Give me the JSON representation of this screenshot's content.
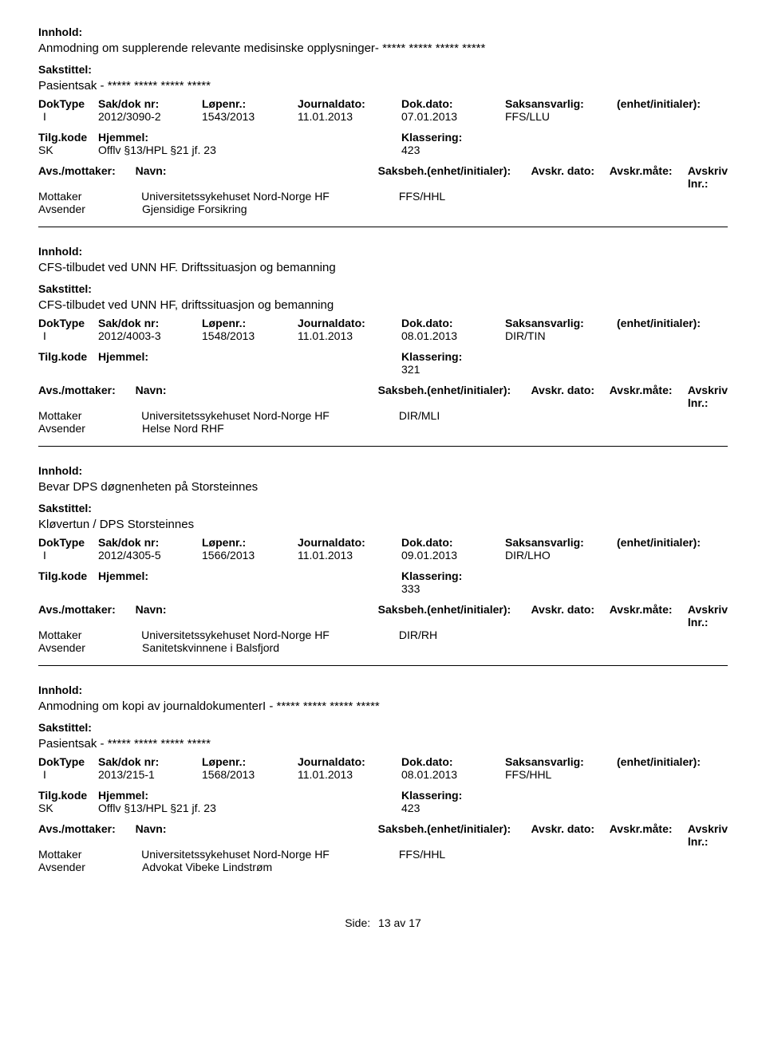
{
  "labels": {
    "innhold": "Innhold:",
    "sakstittel": "Sakstittel:",
    "doktype": "DokType",
    "sakdoknr": "Sak/dok nr:",
    "lopenr": "Løpenr.:",
    "journaldato": "Journaldato:",
    "dokdato": "Dok.dato:",
    "saksansvarlig": "Saksansvarlig:",
    "enhet": "(enhet/initialer):",
    "tilgkode": "Tilg.kode",
    "hjemmel": "Hjemmel:",
    "klassering": "Klassering:",
    "avsmottaker": "Avs./mottaker:",
    "navn": "Navn:",
    "saksbeh": "Saksbeh.(enhet/initialer):",
    "avskrdato": "Avskr. dato:",
    "avskrmate": "Avskr.måte:",
    "avskrivlnr": "Avskriv lnr.:",
    "mottaker": "Mottaker",
    "avsender": "Avsender",
    "side": "Side:",
    "av": "av"
  },
  "entries": [
    {
      "innhold": "Anmodning om supplerende relevante medisinske opplysninger- ***** ***** ***** *****",
      "sakstittel": "Pasientsak - ***** ***** ***** *****",
      "doktype": "I",
      "sakdoknr": "2012/3090-2",
      "lopenr": "1543/2013",
      "journaldato": "11.01.2013",
      "dokdato": "07.01.2013",
      "saksansvarlig": "FFS/LLU",
      "tilgkode": "SK",
      "hjemmel": "Offlv §13/HPL §21 jf. 23",
      "klassering": "423",
      "mottaker_navn": "Universitetssykehuset Nord-Norge HF",
      "saksbeh": "FFS/HHL",
      "avsender_navn": "Gjensidige Forsikring",
      "show_am_headers_row": false
    },
    {
      "innhold": "CFS-tilbudet ved UNN HF. Driftssituasjon og bemanning",
      "sakstittel": "CFS-tilbudet ved UNN HF, driftssituasjon og bemanning",
      "doktype": "I",
      "sakdoknr": "2012/4003-3",
      "lopenr": "1548/2013",
      "journaldato": "11.01.2013",
      "dokdato": "08.01.2013",
      "saksansvarlig": "DIR/TIN",
      "tilgkode": "",
      "hjemmel": "",
      "klassering": "321",
      "mottaker_navn": "Universitetssykehuset Nord-Norge HF",
      "saksbeh": "DIR/MLI",
      "avsender_navn": "Helse Nord RHF",
      "show_am_headers_row": false
    },
    {
      "innhold": "Bevar DPS døgnenheten på Storsteinnes",
      "sakstittel": "Kløvertun / DPS Storsteinnes",
      "doktype": "I",
      "sakdoknr": "2012/4305-5",
      "lopenr": "1566/2013",
      "journaldato": "11.01.2013",
      "dokdato": "09.01.2013",
      "saksansvarlig": "DIR/LHO",
      "tilgkode": "",
      "hjemmel": "",
      "klassering": "333",
      "mottaker_navn": "Universitetssykehuset Nord-Norge HF",
      "saksbeh": "DIR/RH",
      "avsender_navn": "Sanitetskvinnene i Balsfjord",
      "show_am_headers_row": true
    },
    {
      "innhold": "Anmodning om kopi av journaldokumenterI - ***** ***** ***** *****",
      "sakstittel": "Pasientsak - ***** ***** ***** *****",
      "doktype": "I",
      "sakdoknr": "2013/215-1",
      "lopenr": "1568/2013",
      "journaldato": "11.01.2013",
      "dokdato": "08.01.2013",
      "saksansvarlig": "FFS/HHL",
      "tilgkode": "SK",
      "hjemmel": "Offlv §13/HPL §21 jf. 23",
      "klassering": "423",
      "mottaker_navn": "Universitetssykehuset Nord-Norge HF",
      "saksbeh": "FFS/HHL",
      "avsender_navn": "Advokat Vibeke Lindstrøm",
      "show_am_headers_row": true
    }
  ],
  "footer": {
    "page": "13",
    "total": "17"
  }
}
